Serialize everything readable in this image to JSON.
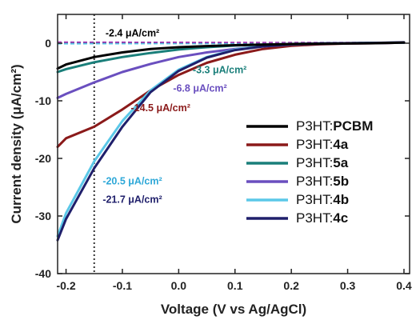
{
  "chart_data": {
    "type": "line",
    "xlabel": "Voltage (V vs Ag/AgCl)",
    "ylabel": "Current density (μA/cm²)",
    "xlim": [
      -0.215,
      0.41
    ],
    "ylim": [
      -40,
      5
    ],
    "xticks": [
      -0.2,
      -0.1,
      0.0,
      0.1,
      0.2,
      0.3,
      0.4
    ],
    "xtick_labels": [
      "-0.2",
      "-0.1",
      "0.0",
      "0.1",
      "0.2",
      "0.3",
      "0.4"
    ],
    "yticks": [
      0,
      -10,
      -20,
      -30,
      -40
    ],
    "ytick_labels": [
      "0",
      "-10",
      "-20",
      "-30",
      "-40"
    ],
    "reference_line_x": -0.15,
    "legend_position": "right",
    "series": [
      {
        "prefix": "P3HT:",
        "suffix": "PCBM",
        "color": "#000000",
        "x": [
          -0.215,
          -0.2,
          -0.15,
          -0.1,
          -0.05,
          0.0,
          0.05,
          0.1,
          0.15,
          0.2,
          0.25,
          0.3,
          0.35,
          0.4
        ],
        "y": [
          -4.4,
          -3.7,
          -2.4,
          -1.6,
          -1.0,
          -0.7,
          -0.5,
          -0.35,
          -0.25,
          -0.15,
          -0.1,
          -0.05,
          0.0,
          0.1
        ]
      },
      {
        "prefix": "P3HT:",
        "suffix": "4a",
        "color": "#8b1a1a",
        "x": [
          -0.215,
          -0.2,
          -0.15,
          -0.1,
          -0.05,
          0.0,
          0.05,
          0.1,
          0.15,
          0.2,
          0.25,
          0.3,
          0.35,
          0.4
        ],
        "y": [
          -18.0,
          -16.5,
          -14.5,
          -11.5,
          -8.2,
          -5.5,
          -3.4,
          -2.0,
          -1.0,
          -0.45,
          -0.2,
          -0.05,
          0.0,
          0.1
        ]
      },
      {
        "prefix": "P3HT:",
        "suffix": "5a",
        "color": "#1a7f7a",
        "x": [
          -0.215,
          -0.2,
          -0.15,
          -0.1,
          -0.05,
          0.0,
          0.05,
          0.1,
          0.15,
          0.2,
          0.25,
          0.3,
          0.35,
          0.4
        ],
        "y": [
          -5.0,
          -4.5,
          -3.3,
          -2.4,
          -1.7,
          -1.1,
          -0.7,
          -0.4,
          -0.25,
          -0.12,
          -0.05,
          0.0,
          0.05,
          0.1
        ]
      },
      {
        "prefix": "P3HT:",
        "suffix": "5b",
        "color": "#6a4fbf",
        "x": [
          -0.215,
          -0.2,
          -0.15,
          -0.1,
          -0.05,
          0.0,
          0.05,
          0.1,
          0.15,
          0.2,
          0.25,
          0.3,
          0.35,
          0.4
        ],
        "y": [
          -9.5,
          -8.8,
          -6.8,
          -5.0,
          -3.6,
          -2.4,
          -1.6,
          -1.0,
          -0.55,
          -0.25,
          -0.1,
          -0.02,
          0.0,
          0.1
        ]
      },
      {
        "prefix": "P3HT:",
        "suffix": "4b",
        "color": "#5bc8e8",
        "x": [
          -0.215,
          -0.2,
          -0.15,
          -0.1,
          -0.05,
          0.0,
          0.05,
          0.1,
          0.15,
          0.2,
          0.25,
          0.3,
          0.35,
          0.4
        ],
        "y": [
          -33.5,
          -29.5,
          -20.5,
          -13.5,
          -8.2,
          -4.6,
          -2.4,
          -1.1,
          -0.5,
          -0.2,
          -0.05,
          0.0,
          0.05,
          0.1
        ]
      },
      {
        "prefix": "P3HT:",
        "suffix": "4c",
        "color": "#1f1f6b",
        "x": [
          -0.215,
          -0.2,
          -0.15,
          -0.1,
          -0.05,
          0.0,
          0.05,
          0.1,
          0.15,
          0.2,
          0.25,
          0.3,
          0.35,
          0.4
        ],
        "y": [
          -34.2,
          -30.5,
          -21.7,
          -14.5,
          -8.5,
          -4.8,
          -2.5,
          -1.2,
          -0.55,
          -0.2,
          -0.05,
          0.0,
          0.05,
          0.15
        ]
      }
    ],
    "dashed_series": [
      {
        "color": "#000000",
        "x": [
          -0.215,
          0.4
        ],
        "y": [
          0.0,
          0.0
        ]
      },
      {
        "color": "#8b1a1a",
        "x": [
          -0.215,
          0.4
        ],
        "y": [
          0.05,
          0.0
        ]
      },
      {
        "color": "#1a7f7a",
        "x": [
          -0.215,
          0.4
        ],
        "y": [
          -0.05,
          0.0
        ]
      },
      {
        "color": "#6a4fbf",
        "x": [
          -0.215,
          0.4
        ],
        "y": [
          0.1,
          0.05
        ]
      },
      {
        "color": "#5bc8e8",
        "x": [
          -0.215,
          0.4
        ],
        "y": [
          -0.1,
          0.0
        ]
      },
      {
        "color": "#1f1f6b",
        "x": [
          -0.215,
          0.4
        ],
        "y": [
          0.15,
          0.05
        ]
      },
      {
        "color": "#b04fbf",
        "x": [
          -0.215,
          0.4
        ],
        "y": [
          0.2,
          0.1
        ]
      }
    ],
    "annotations": [
      {
        "text": "-2.4 μA/cm²",
        "color": "#000000",
        "x": -0.13,
        "y": 1.2
      },
      {
        "text": "-3.3 μA/cm²",
        "color": "#1a7f7a",
        "x": 0.025,
        "y": -5.2
      },
      {
        "text": "-6.8 μA/cm²",
        "color": "#6a4fbf",
        "x": -0.01,
        "y": -8.4
      },
      {
        "text": "-14.5 μA/cm²",
        "color": "#8b1a1a",
        "x": -0.085,
        "y": -11.8
      },
      {
        "text": "-20.5 μA/cm²",
        "color": "#2ea8d8",
        "x": -0.135,
        "y": -24.5
      },
      {
        "text": "-21.7 μA/cm²",
        "color": "#1f1f6b",
        "x": -0.135,
        "y": -27.7
      }
    ]
  }
}
